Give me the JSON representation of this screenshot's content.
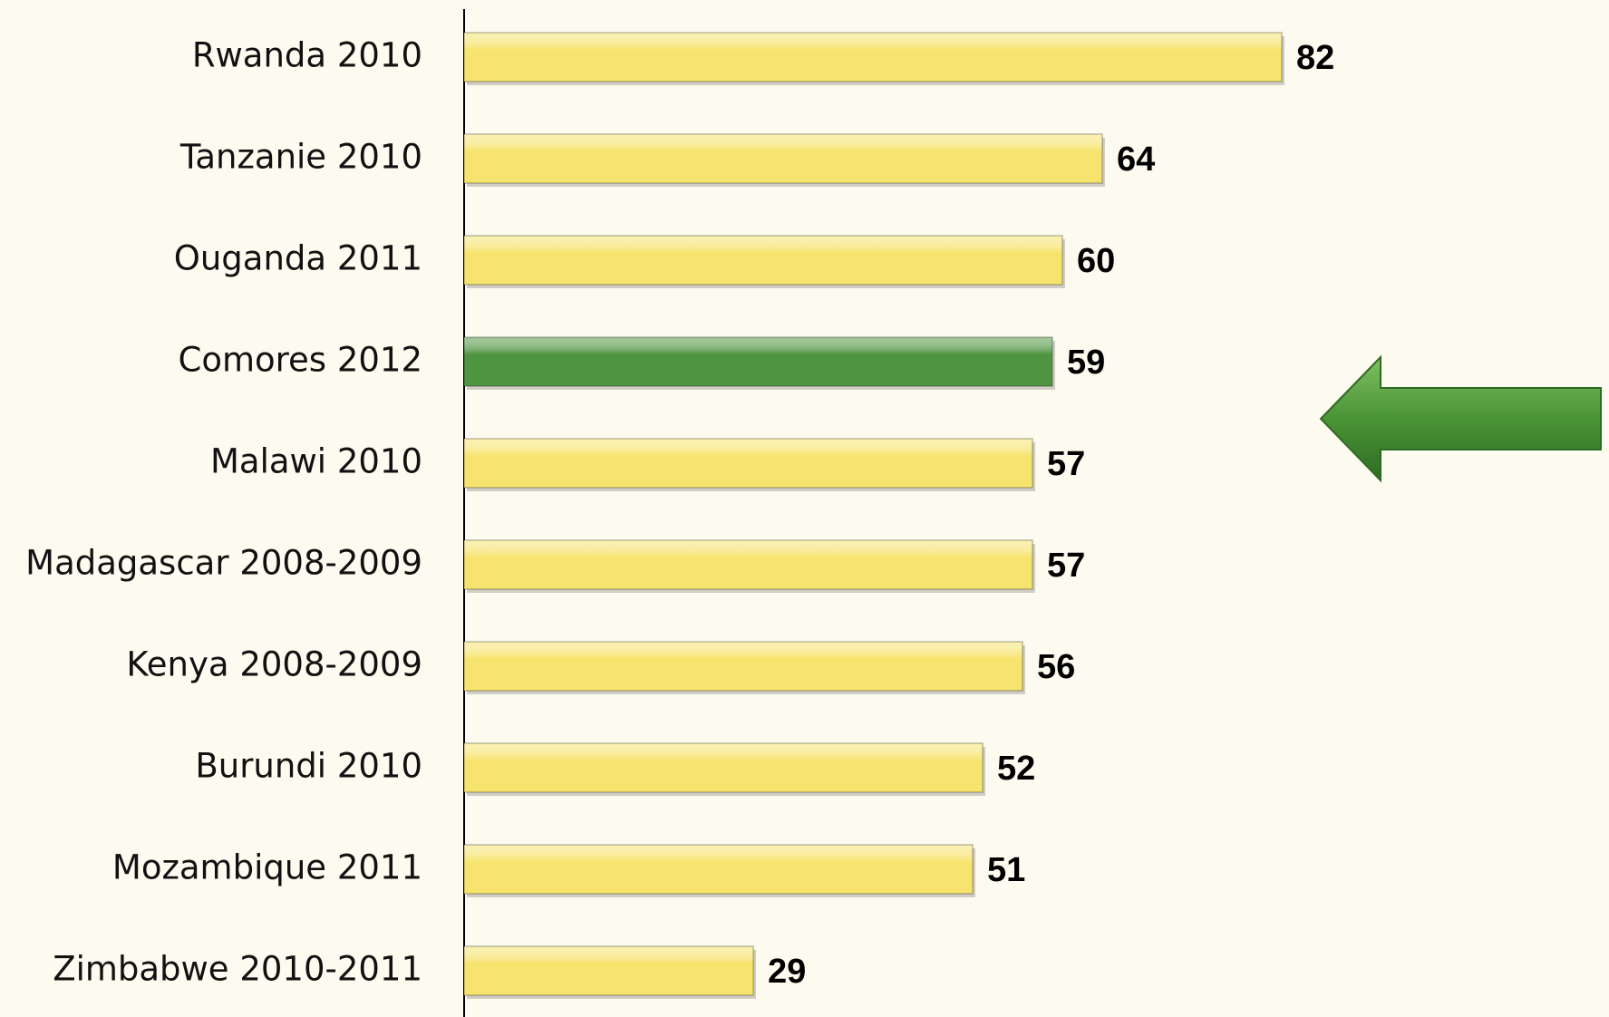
{
  "chart_data": {
    "type": "bar",
    "orientation": "horizontal",
    "categories": [
      "Rwanda 2010",
      "Tanzanie 2010",
      "Ouganda 2011",
      "Comores 2012",
      "Malawi 2010",
      "Madagascar 2008-2009",
      "Kenya 2008-2009",
      "Burundi 2010",
      "Mozambique 2011",
      "Zimbabwe 2010-2011"
    ],
    "values": [
      82,
      64,
      60,
      59,
      57,
      57,
      56,
      52,
      51,
      29
    ],
    "colors": [
      "#f7e46e",
      "#f7e46e",
      "#f7e46e",
      "#4f9440",
      "#f7e46e",
      "#f7e46e",
      "#f7e46e",
      "#f7e46e",
      "#f7e46e",
      "#f7e46e"
    ]
  }
}
